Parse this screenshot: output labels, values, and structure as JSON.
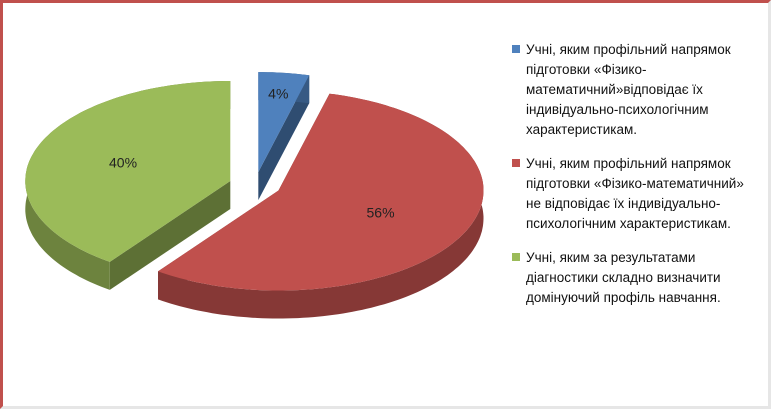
{
  "chart_data": {
    "type": "pie",
    "categories": [
      "Учні, яким профільний напрямок підготовки «Фізико-математичний»відповідає їх індивідуально-психологічним характеристикам.",
      "Учні, яким профільний напрямок підготовки «Фізико-математичний» не відповідає їх індивідуально-психологічним характеристикам.",
      "Учні, яким за результатами діагностики складно визначити домінуючий профіль навчання."
    ],
    "values": [
      4,
      56,
      40
    ],
    "value_labels": [
      "4%",
      "56%",
      "40%"
    ],
    "colors": [
      "#4f81bd",
      "#c0504d",
      "#9bbb59"
    ],
    "legend": "right"
  }
}
